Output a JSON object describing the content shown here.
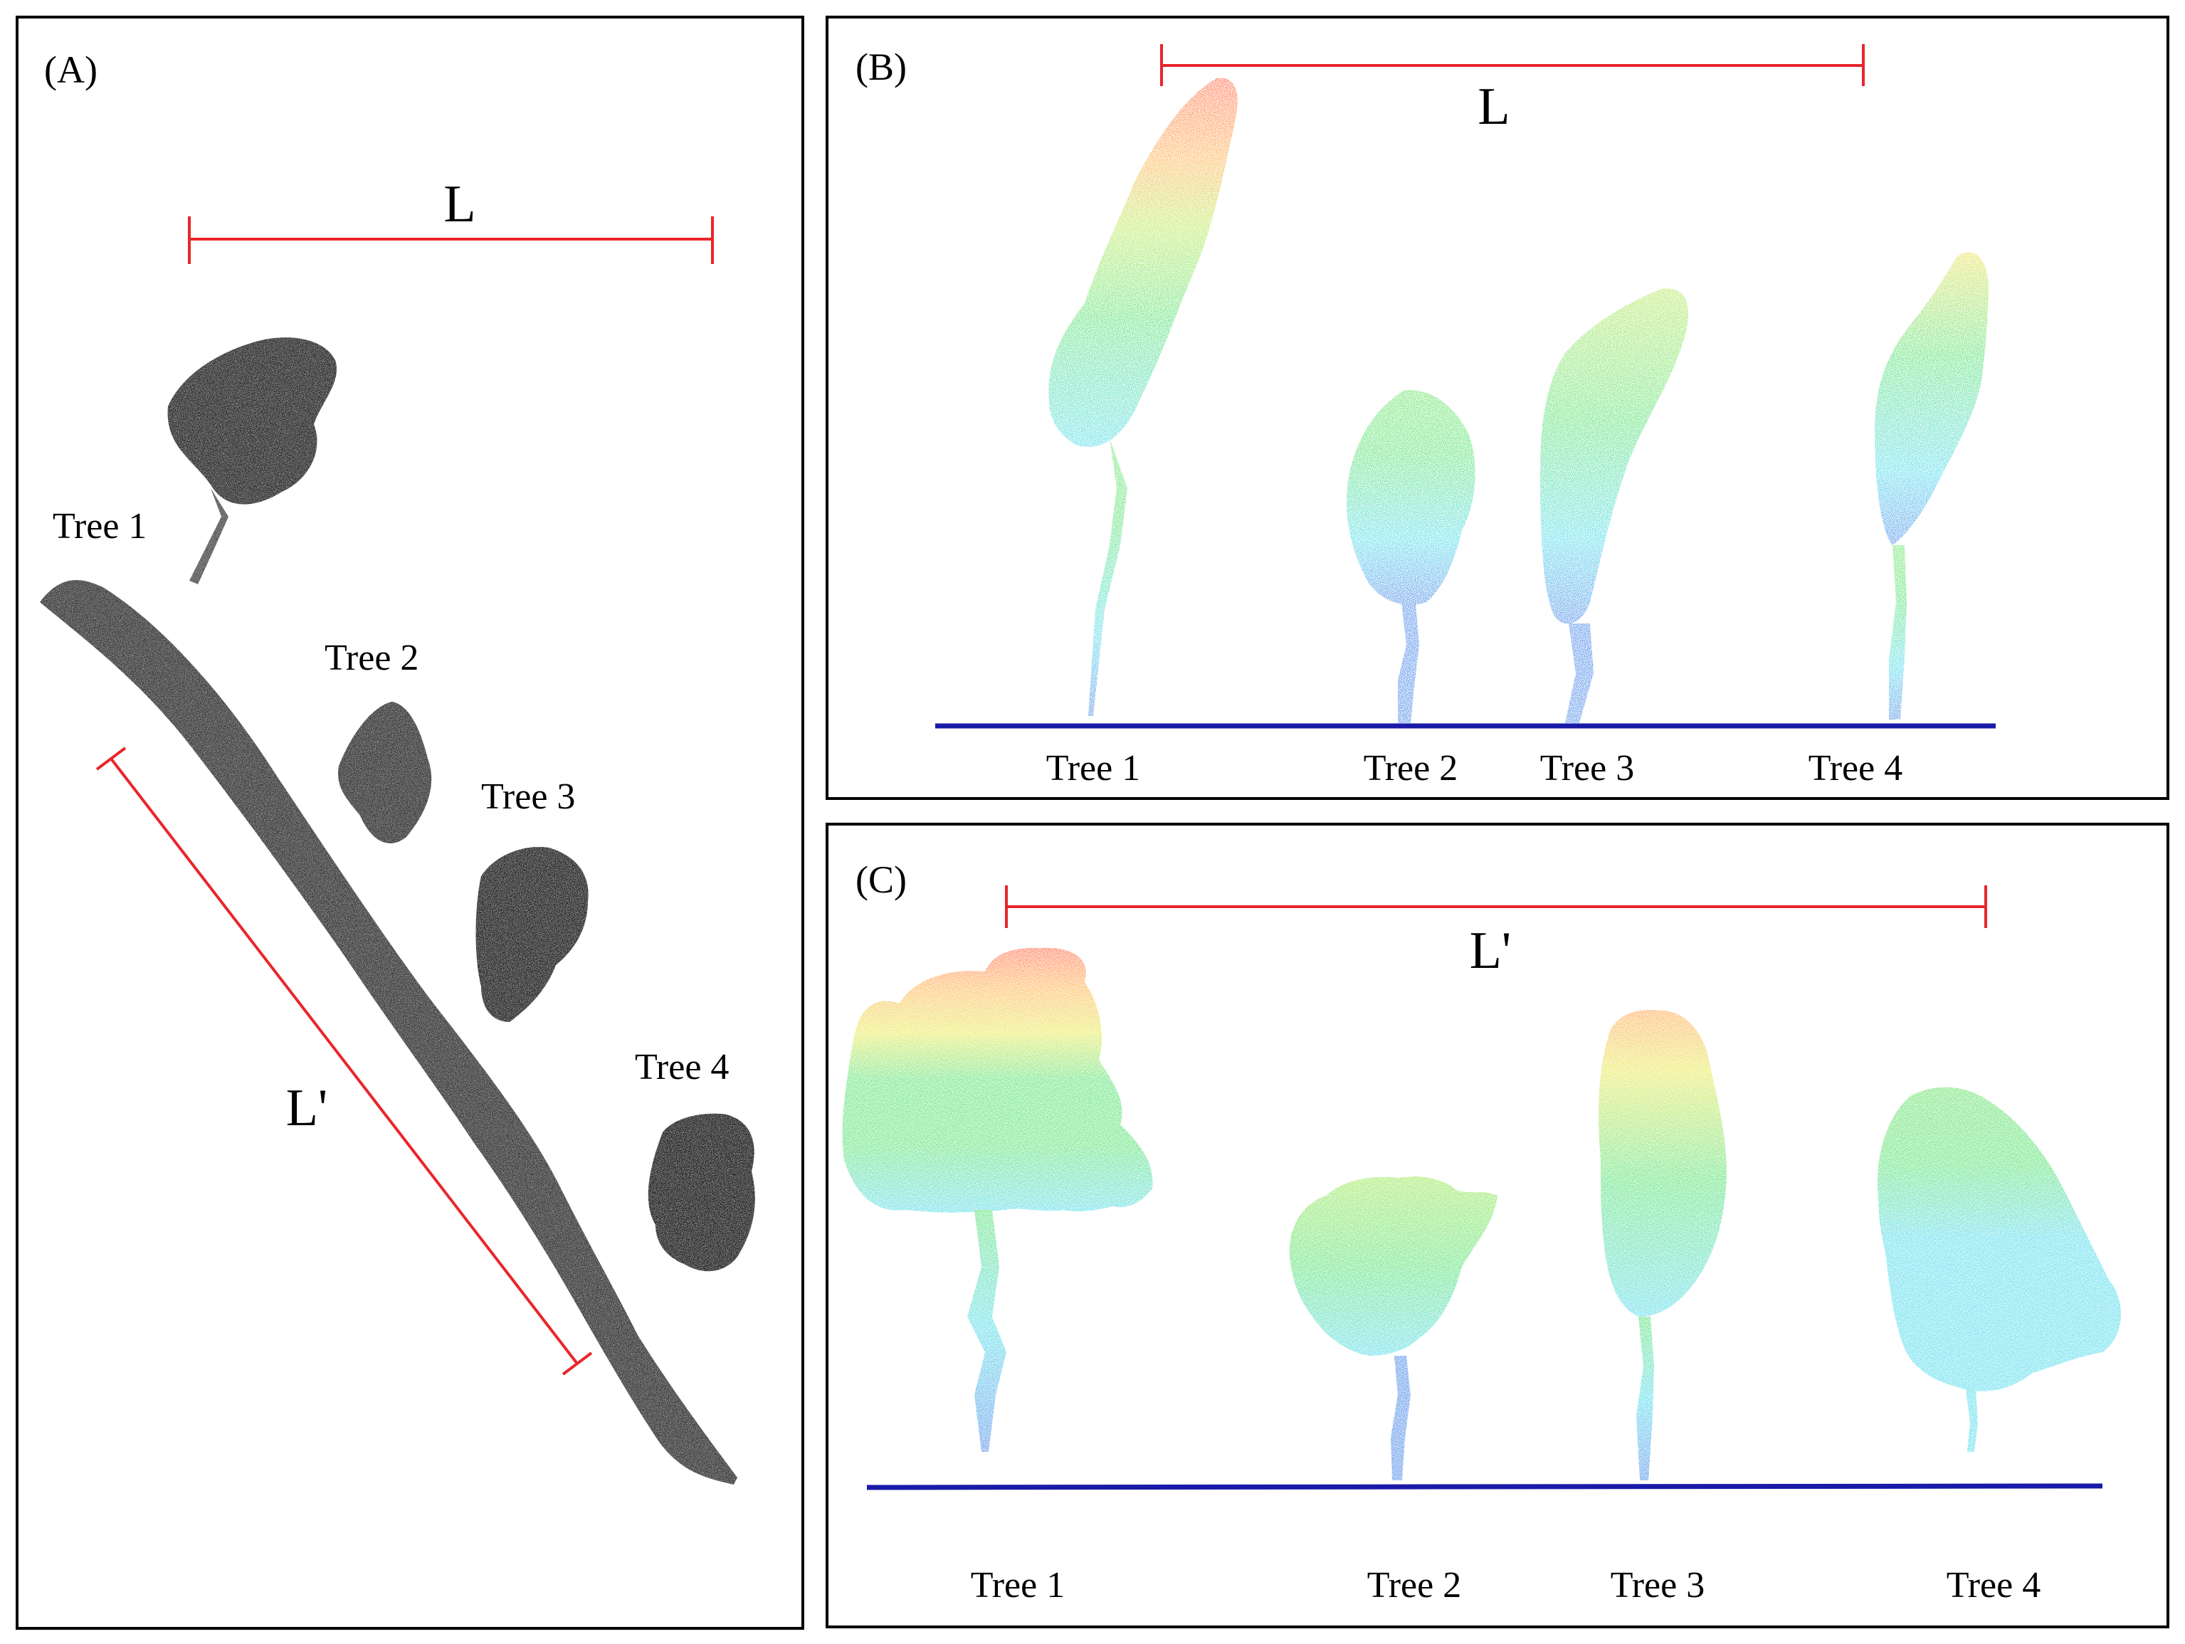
{
  "panels": {
    "a": {
      "label": "(A)",
      "scale_top": "L",
      "scale_diag": "L'",
      "trees": [
        "Tree 1",
        "Tree 2",
        "Tree 3",
        "Tree 4"
      ]
    },
    "b": {
      "label": "(B)",
      "scale": "L",
      "trees": [
        "Tree 1",
        "Tree 2",
        "Tree 3",
        "Tree 4"
      ]
    },
    "c": {
      "label": "(C)",
      "scale": "L'",
      "trees": [
        "Tree 1",
        "Tree 2",
        "Tree 3",
        "Tree 4"
      ]
    }
  },
  "colors": {
    "scale_bar": "#e8262b",
    "ground_line": "#1a1aa8",
    "point_cloud_gray": "#3a3a3a",
    "height_ramp": [
      "#1565e0",
      "#1fd0e6",
      "#23d846",
      "#c9e31a",
      "#ff9a18",
      "#ff3a12"
    ]
  }
}
